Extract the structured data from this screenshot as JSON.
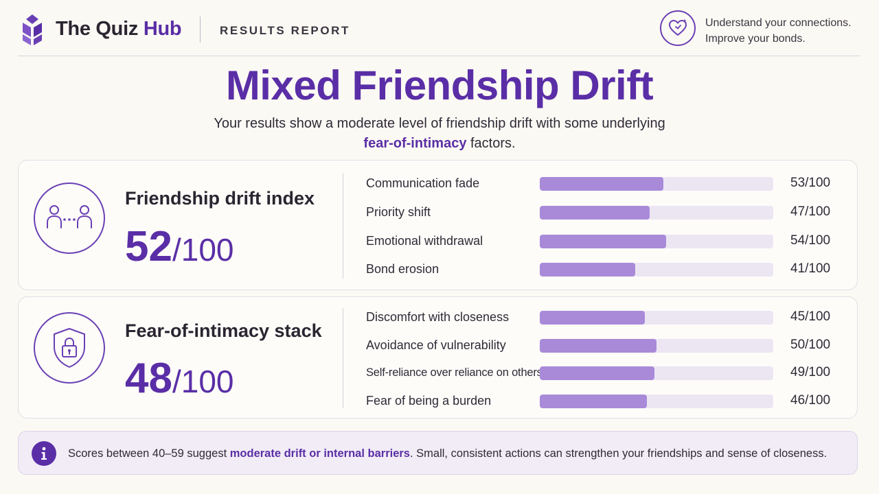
{
  "header": {
    "brand_main": "The Quiz ",
    "brand_accent": "Hub",
    "report_label": "RESULTS REPORT",
    "tagline_line1": "Understand your connections.",
    "tagline_line2": "Improve your bonds."
  },
  "icons": {
    "logo": "lotus-logo-icon",
    "tagline": "heart-sparkle-icon",
    "drift": "people-connection-icon",
    "intimacy": "shield-lock-icon",
    "note": "info-icon"
  },
  "colors": {
    "accent": "#5a2ea6",
    "bar_fill": "#a98ad9",
    "bar_track": "#ece6f3",
    "background": "#fbf9f4"
  },
  "title": "Mixed Friendship Drift",
  "subtitle": {
    "before": "Your results show a moderate level of friendship drift with some underlying ",
    "emphasis": "fear-of-intimacy",
    "after": " factors."
  },
  "drift": {
    "label": "Friendship drift index",
    "score": "52",
    "out_of": "/100",
    "items": [
      {
        "label": "Communication fade",
        "score": "53/100",
        "value": 53
      },
      {
        "label": "Priority shift",
        "score": "47/100",
        "value": 47
      },
      {
        "label": "Emotional withdrawal",
        "score": "54/100",
        "value": 54
      },
      {
        "label": "Bond erosion",
        "score": "41/100",
        "value": 41
      }
    ]
  },
  "intimacy": {
    "label": "Fear-of-intimacy stack",
    "score": "48",
    "out_of": "/100",
    "items": [
      {
        "label": "Discomfort with closeness",
        "score": "45/100",
        "value": 45
      },
      {
        "label": "Avoidance of vulnerability",
        "score": "50/100",
        "value": 50
      },
      {
        "label": "Self-reliance over reliance on others",
        "score": "49/100",
        "value": 49
      },
      {
        "label": "Fear of being a burden",
        "score": "46/100",
        "value": 46
      }
    ]
  },
  "note": {
    "before": "Scores between 40–59 suggest ",
    "emphasis": "moderate drift or internal barriers",
    "after": ". Small, consistent actions can strengthen your friendships and sense of closeness."
  }
}
